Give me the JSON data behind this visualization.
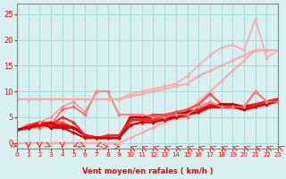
{
  "xlabel": "Vent moyen/en rafales ( km/h )",
  "ylabel": "",
  "xlim": [
    0,
    23
  ],
  "ylim": [
    -1,
    27
  ],
  "yticks": [
    0,
    5,
    10,
    15,
    20,
    25
  ],
  "xticks": [
    0,
    1,
    2,
    3,
    4,
    5,
    6,
    7,
    8,
    9,
    10,
    11,
    12,
    13,
    14,
    15,
    16,
    17,
    18,
    19,
    20,
    21,
    22,
    23
  ],
  "bg_color": "#d8f0f0",
  "grid_color": "#aadddd",
  "series": [
    {
      "x": [
        0,
        1,
        2,
        3,
        4,
        5,
        6,
        7,
        8,
        9,
        10,
        11,
        12,
        13,
        14,
        15,
        16,
        17,
        18,
        19,
        20,
        21,
        22,
        23
      ],
      "y": [
        8.5,
        8.5,
        8.5,
        8.5,
        8.5,
        8.5,
        8.5,
        8.5,
        8.5,
        8.5,
        9,
        9.5,
        10,
        10.5,
        11,
        11.5,
        13,
        14,
        15,
        16,
        17,
        18,
        18,
        18
      ],
      "color": "#ffaaaa",
      "lw": 1.5,
      "marker": "D",
      "ms": 2
    },
    {
      "x": [
        0,
        1,
        2,
        3,
        4,
        5,
        6,
        7,
        8,
        9,
        10,
        11,
        12,
        13,
        14,
        15,
        16,
        17,
        18,
        19,
        20,
        21,
        22,
        23
      ],
      "y": [
        0,
        0,
        0,
        0,
        0,
        0,
        0,
        0,
        0,
        0,
        1,
        2,
        3,
        4,
        5,
        6,
        8,
        10,
        12,
        14,
        16,
        18,
        18,
        18
      ],
      "color": "#ffaaaa",
      "lw": 1.5,
      "marker": "D",
      "ms": 2
    },
    {
      "x": [
        0,
        1,
        2,
        3,
        4,
        5,
        6,
        7,
        8,
        9,
        10,
        11,
        12,
        13,
        14,
        15,
        16,
        17,
        18,
        19,
        20,
        21,
        22,
        23
      ],
      "y": [
        2.5,
        3.5,
        4,
        4,
        4,
        3,
        1.5,
        1,
        1,
        1,
        5,
        5,
        5.5,
        5.5,
        6,
        6.5,
        7.5,
        9.5,
        7.5,
        7.5,
        7,
        10,
        8,
        8.5
      ],
      "color": "#ff4444",
      "lw": 1.5,
      "marker": "D",
      "ms": 2
    },
    {
      "x": [
        0,
        1,
        2,
        3,
        4,
        5,
        6,
        7,
        8,
        9,
        10,
        11,
        12,
        13,
        14,
        15,
        16,
        17,
        18,
        19,
        20,
        21,
        22,
        23
      ],
      "y": [
        2.5,
        3,
        3,
        3.5,
        6.5,
        7,
        5.5,
        10,
        10,
        5.5,
        5.5,
        5.5,
        5,
        5,
        5,
        5,
        7,
        8,
        7,
        7,
        7,
        10,
        8,
        8
      ],
      "color": "#ff6666",
      "lw": 1.2,
      "marker": "D",
      "ms": 2
    },
    {
      "x": [
        0,
        1,
        2,
        3,
        4,
        5,
        6,
        7,
        8,
        9,
        10,
        11,
        12,
        13,
        14,
        15,
        16,
        17,
        18,
        19,
        20,
        21,
        22,
        23
      ],
      "y": [
        2.5,
        3,
        3.5,
        3.5,
        3.5,
        3,
        1.5,
        1,
        1,
        1,
        4.5,
        4.5,
        4.5,
        4.5,
        5,
        5.5,
        6,
        7,
        7,
        7,
        6.5,
        7,
        8,
        8.5
      ],
      "color": "#ff0000",
      "lw": 2.0,
      "marker": "D",
      "ms": 2
    },
    {
      "x": [
        0,
        1,
        2,
        3,
        4,
        5,
        6,
        7,
        8,
        9,
        10,
        11,
        12,
        13,
        14,
        15,
        16,
        17,
        18,
        19,
        20,
        21,
        22,
        23
      ],
      "y": [
        2.5,
        3,
        4,
        3,
        3,
        3,
        1.5,
        1,
        1,
        1,
        5,
        5,
        5,
        5,
        5.5,
        6,
        6.5,
        7,
        7.5,
        7.5,
        7,
        7.5,
        8,
        8.5
      ],
      "color": "#cc0000",
      "lw": 2.0,
      "marker": "D",
      "ms": 2
    },
    {
      "x": [
        0,
        1,
        2,
        3,
        4,
        5,
        6,
        7,
        8,
        9,
        10,
        11,
        12,
        13,
        14,
        15,
        16,
        17,
        18,
        19,
        20,
        21,
        22,
        23
      ],
      "y": [
        2.5,
        3,
        4,
        3.5,
        5,
        4,
        1.5,
        1,
        1.5,
        1.5,
        4.5,
        4.5,
        4.5,
        4.5,
        5,
        5.5,
        6.5,
        7.5,
        7,
        7,
        6.5,
        7.5,
        8,
        8.5
      ],
      "color": "#ff2222",
      "lw": 1.5,
      "marker": "D",
      "ms": 2
    },
    {
      "x": [
        0,
        1,
        2,
        3,
        4,
        5,
        6,
        7,
        8,
        9,
        10,
        11,
        12,
        13,
        14,
        15,
        16,
        17,
        18,
        19,
        20,
        21,
        22,
        23
      ],
      "y": [
        2.5,
        3,
        3.5,
        4,
        3,
        2,
        1,
        1,
        1,
        1,
        3.5,
        4,
        4,
        4.5,
        5,
        5.5,
        6,
        7,
        7,
        7,
        6.5,
        7,
        7.5,
        8
      ],
      "color": "#dd0000",
      "lw": 1.5,
      "marker": "D",
      "ms": 2
    },
    {
      "x": [
        2,
        3,
        4,
        5,
        6,
        7,
        8,
        9,
        10,
        11,
        12,
        13,
        14,
        15,
        16,
        17,
        18,
        19,
        20,
        21,
        22,
        23
      ],
      "y": [
        4,
        5,
        7,
        8,
        6,
        10,
        10,
        5.5,
        5.5,
        5.5,
        5,
        5,
        5.5,
        5.5,
        7,
        8,
        7,
        7,
        7,
        10,
        8,
        8
      ],
      "color": "#ff8888",
      "lw": 1.0,
      "marker": "D",
      "ms": 2
    },
    {
      "x": [
        0,
        1,
        2,
        3,
        4,
        5,
        6,
        7,
        8,
        9,
        10,
        11,
        12,
        13,
        14,
        15,
        16,
        17,
        18,
        19,
        20,
        21,
        22,
        23
      ],
      "y": [
        8.5,
        8.5,
        8.5,
        8.5,
        8.5,
        8.5,
        8.5,
        8.5,
        8.5,
        8.5,
        9.5,
        10,
        10.5,
        11,
        11.5,
        13,
        15,
        17,
        18.5,
        19,
        18,
        24,
        16.5,
        18
      ],
      "color": "#ffaaaa",
      "lw": 1.2,
      "marker": "D",
      "ms": 2
    }
  ]
}
